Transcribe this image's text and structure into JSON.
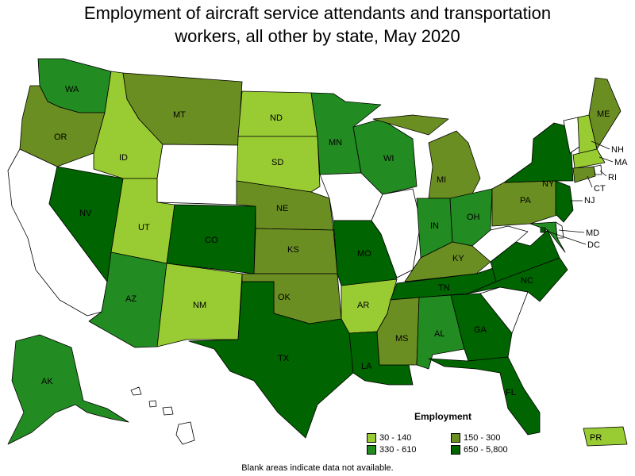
{
  "title_line1": "Employment of aircraft service attendants and transportation",
  "title_line2": "workers, all other by state, May 2020",
  "legend": {
    "title": "Employment",
    "items": [
      {
        "label": "30 - 140",
        "color": "#99cc33"
      },
      {
        "label": "150 - 300",
        "color": "#6b8e23"
      },
      {
        "label": "330 - 610",
        "color": "#228b22"
      },
      {
        "label": "650 - 5,800",
        "color": "#006400"
      }
    ]
  },
  "footnote": "Blank areas indicate data not available.",
  "no_data_color": "#ffffff",
  "states": {
    "WA": "330 - 610",
    "OR": "150 - 300",
    "CA": null,
    "NV": "650 - 5,800",
    "ID": "30 - 140",
    "MT": "150 - 300",
    "WY": null,
    "UT": "30 - 140",
    "AZ": "330 - 610",
    "CO": "650 - 5,800",
    "NM": "30 - 140",
    "ND": "30 - 140",
    "SD": "30 - 140",
    "NE": "150 - 300",
    "KS": "150 - 300",
    "OK": "150 - 300",
    "TX": "650 - 5,800",
    "MN": "330 - 610",
    "IA": null,
    "MO": "650 - 5,800",
    "AR": "30 - 140",
    "LA": "650 - 5,800",
    "WI": "330 - 610",
    "IL": null,
    "MI": "150 - 300",
    "IN": "330 - 610",
    "OH": "330 - 610",
    "KY": "150 - 300",
    "TN": "650 - 5,800",
    "MS": "150 - 300",
    "AL": "330 - 610",
    "GA": "650 - 5,800",
    "FL": "650 - 5,800",
    "SC": null,
    "NC": "650 - 5,800",
    "VA": "650 - 5,800",
    "WV": null,
    "PA": "150 - 300",
    "NY": "650 - 5,800",
    "VT": null,
    "NH": "30 - 140",
    "ME": "150 - 300",
    "MA": "30 - 140",
    "RI": null,
    "CT": "150 - 300",
    "NJ": "650 - 5,800",
    "DE": null,
    "MD": "330 - 610",
    "DC": "650 - 5,800",
    "AK": "330 - 610",
    "HI": null,
    "PR": "30 - 140"
  }
}
